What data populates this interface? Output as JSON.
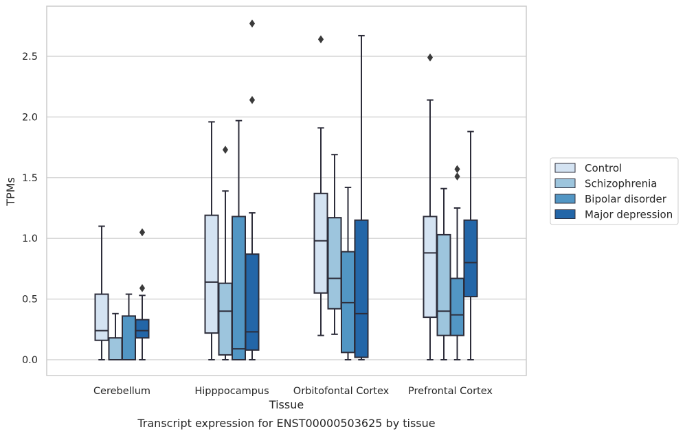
{
  "chart_data": {
    "type": "box",
    "caption": "Transcript expression for ENST00000503625 by tissue",
    "xlabel": "Tissue",
    "ylabel": "TPMs",
    "ylim": [
      -0.13,
      2.92
    ],
    "yticks": [
      "0.0",
      "0.5",
      "1.0",
      "1.5",
      "2.0",
      "2.5"
    ],
    "ytick_values": [
      0.0,
      0.5,
      1.0,
      1.5,
      2.0,
      2.5
    ],
    "grid": "horizontal",
    "legend_position": "right",
    "categories": [
      "Cerebellum",
      "Hipppocampus",
      "Orbitofontal Cortex",
      "Prefrontal Cortex"
    ],
    "series": [
      {
        "name": "Control",
        "color": "#d4e3f2",
        "boxes": [
          {
            "whisker_low": 0.0,
            "q1": 0.16,
            "median": 0.24,
            "q3": 0.54,
            "whisker_high": 1.1,
            "outliers": []
          },
          {
            "whisker_low": 0.0,
            "q1": 0.22,
            "median": 0.64,
            "q3": 1.19,
            "whisker_high": 1.96,
            "outliers": []
          },
          {
            "whisker_low": 0.2,
            "q1": 0.55,
            "median": 0.98,
            "q3": 1.37,
            "whisker_high": 1.91,
            "outliers": [
              2.64
            ]
          },
          {
            "whisker_low": 0.0,
            "q1": 0.35,
            "median": 0.88,
            "q3": 1.18,
            "whisker_high": 2.14,
            "outliers": [
              2.49
            ]
          }
        ]
      },
      {
        "name": "Schizophrenia",
        "color": "#9dc5dd",
        "boxes": [
          {
            "whisker_low": 0.0,
            "q1": 0.0,
            "median": 0.0,
            "q3": 0.18,
            "whisker_high": 0.38,
            "outliers": []
          },
          {
            "whisker_low": 0.0,
            "q1": 0.04,
            "median": 0.4,
            "q3": 0.63,
            "whisker_high": 1.39,
            "outliers": [
              1.73
            ]
          },
          {
            "whisker_low": 0.21,
            "q1": 0.42,
            "median": 0.67,
            "q3": 1.17,
            "whisker_high": 1.69,
            "outliers": []
          },
          {
            "whisker_low": 0.0,
            "q1": 0.2,
            "median": 0.4,
            "q3": 1.03,
            "whisker_high": 1.41,
            "outliers": []
          }
        ]
      },
      {
        "name": "Bipolar disorder",
        "color": "#5296c4",
        "boxes": [
          {
            "whisker_low": 0.0,
            "q1": 0.0,
            "median": 0.0,
            "q3": 0.36,
            "whisker_high": 0.54,
            "outliers": []
          },
          {
            "whisker_low": 0.0,
            "q1": 0.0,
            "median": 0.09,
            "q3": 1.18,
            "whisker_high": 1.97,
            "outliers": []
          },
          {
            "whisker_low": 0.0,
            "q1": 0.06,
            "median": 0.47,
            "q3": 0.89,
            "whisker_high": 1.42,
            "outliers": []
          },
          {
            "whisker_low": 0.0,
            "q1": 0.2,
            "median": 0.37,
            "q3": 0.67,
            "whisker_high": 1.25,
            "outliers": [
              1.51,
              1.57
            ]
          }
        ]
      },
      {
        "name": "Major depression",
        "color": "#2366a8",
        "boxes": [
          {
            "whisker_low": 0.0,
            "q1": 0.18,
            "median": 0.24,
            "q3": 0.33,
            "whisker_high": 0.53,
            "outliers": [
              0.59,
              1.05
            ]
          },
          {
            "whisker_low": 0.0,
            "q1": 0.08,
            "median": 0.23,
            "q3": 0.87,
            "whisker_high": 1.21,
            "outliers": [
              2.14,
              2.77
            ]
          },
          {
            "whisker_low": 0.0,
            "q1": 0.02,
            "median": 0.38,
            "q3": 1.15,
            "whisker_high": 2.67,
            "outliers": []
          },
          {
            "whisker_low": 0.0,
            "q1": 0.52,
            "median": 0.8,
            "q3": 1.15,
            "whisker_high": 1.88,
            "outliers": []
          }
        ]
      }
    ]
  }
}
